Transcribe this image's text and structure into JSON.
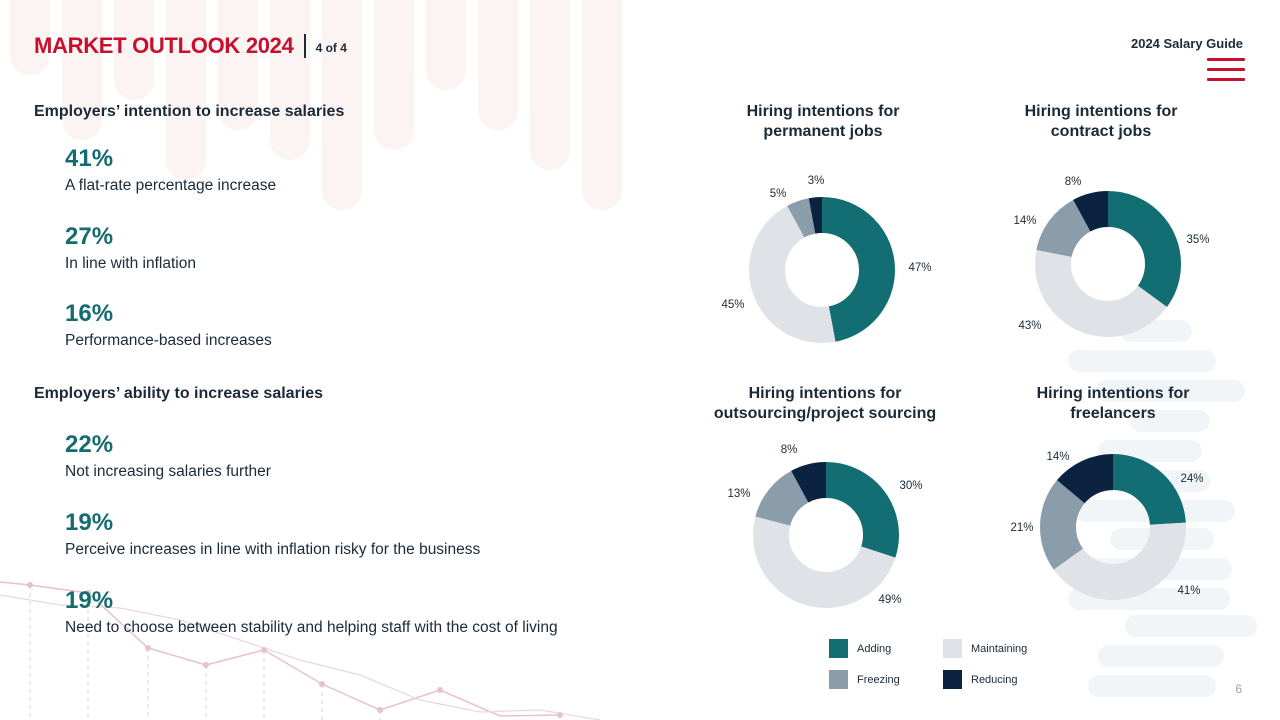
{
  "header": {
    "title": "MARKET OUTLOOK 2024",
    "page_indicator": "4 of 4",
    "guide_label": "2024 Salary Guide"
  },
  "colors": {
    "brand_red": "#c8102e",
    "teal": "#146b70",
    "navy": "#1b2a38",
    "adding": "#136e73",
    "maintaining": "#dfe2e7",
    "freezing": "#8b9dab",
    "reducing": "#0b2340"
  },
  "icons": {
    "menu": "hamburger-menu-icon"
  },
  "increase_intentions": {
    "heading": "Employers’ intention to increase salaries",
    "items": [
      {
        "value": "41%",
        "label": "A flat-rate percentage increase"
      },
      {
        "value": "27%",
        "label": "In line with inflation"
      },
      {
        "value": "16%",
        "label": "Performance-based increases"
      }
    ]
  },
  "increase_ability": {
    "heading": "Employers’ ability to increase salaries",
    "items": [
      {
        "value": "22%",
        "label": "Not increasing salaries further"
      },
      {
        "value": "19%",
        "label": "Perceive increases in line with inflation risky for the business"
      },
      {
        "value": "19%",
        "label": "Need to choose between stability and helping staff with the cost of living"
      }
    ]
  },
  "chart_data": [
    {
      "type": "pie",
      "title": "Hiring intentions for permanent jobs",
      "categories": [
        "Adding",
        "Maintaining",
        "Freezing",
        "Reducing"
      ],
      "values": [
        47,
        45,
        5,
        3
      ],
      "labels": [
        "47%",
        "45%",
        "5%",
        "3%"
      ]
    },
    {
      "type": "pie",
      "title": "Hiring intentions for contract jobs",
      "categories": [
        "Adding",
        "Maintaining",
        "Freezing",
        "Reducing"
      ],
      "values": [
        35,
        43,
        14,
        8
      ],
      "labels": [
        "35%",
        "43%",
        "14%",
        "8%"
      ]
    },
    {
      "type": "pie",
      "title": "Hiring intentions for outsourcing/project sourcing",
      "categories": [
        "Adding",
        "Maintaining",
        "Freezing",
        "Reducing"
      ],
      "values": [
        30,
        49,
        13,
        8
      ],
      "labels": [
        "30%",
        "49%",
        "13%",
        "8%"
      ]
    },
    {
      "type": "pie",
      "title": "Hiring intentions for freelancers",
      "categories": [
        "Adding",
        "Maintaining",
        "Freezing",
        "Reducing"
      ],
      "values": [
        24,
        41,
        21,
        14
      ],
      "labels": [
        "24%",
        "41%",
        "21%",
        "14%"
      ]
    }
  ],
  "chart_titles": [
    {
      "line1": "Hiring intentions for",
      "line2": "permanent jobs"
    },
    {
      "line1": "Hiring intentions for",
      "line2": "contract jobs"
    },
    {
      "line1": "Hiring intentions for",
      "line2": "outsourcing/project sourcing"
    },
    {
      "line1": "Hiring intentions for",
      "line2": "freelancers"
    }
  ],
  "legend": [
    {
      "label": "Adding",
      "color": "#136e73"
    },
    {
      "label": "Maintaining",
      "color": "#dfe2e7"
    },
    {
      "label": "Freezing",
      "color": "#8b9dab"
    },
    {
      "label": "Reducing",
      "color": "#0b2340"
    }
  ],
  "page_number": "6"
}
